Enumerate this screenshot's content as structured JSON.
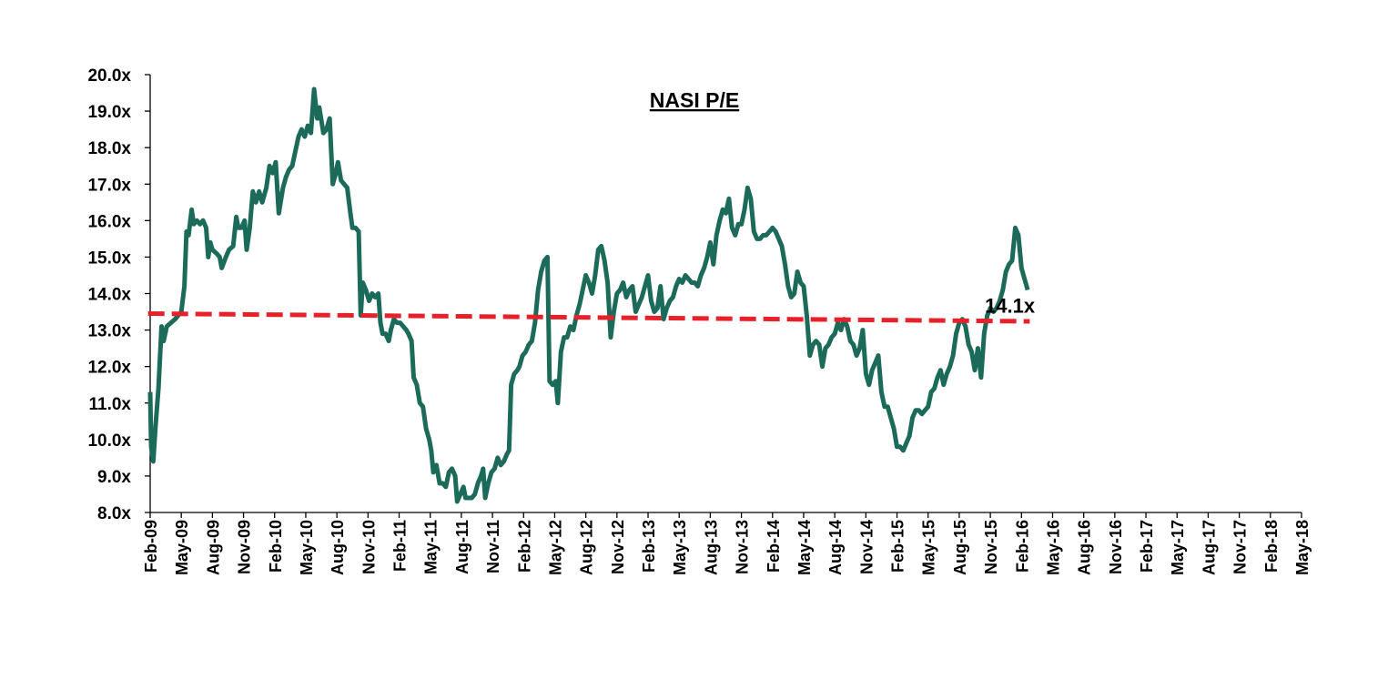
{
  "chart_data": {
    "type": "line",
    "title": "NASI P/E",
    "xlabel": "",
    "ylabel": "",
    "ylim": [
      8.0,
      20.0
    ],
    "ytick_step": 1.0,
    "ytick_labels": [
      "8.0x",
      "9.0x",
      "10.0x",
      "11.0x",
      "12.0x",
      "13.0x",
      "14.0x",
      "15.0x",
      "16.0x",
      "17.0x",
      "18.0x",
      "19.0x",
      "20.0x"
    ],
    "xtick_labels": [
      "Feb-09",
      "May-09",
      "Aug-09",
      "Nov-09",
      "Feb-10",
      "May-10",
      "Aug-10",
      "Nov-10",
      "Feb-11",
      "May-11",
      "Aug-11",
      "Nov-11",
      "Feb-12",
      "May-12",
      "Aug-12",
      "Nov-12",
      "Feb-13",
      "May-13",
      "Aug-13",
      "Nov-13",
      "Feb-14",
      "May-14",
      "Aug-14",
      "Nov-14",
      "Feb-15",
      "May-15",
      "Aug-15",
      "Nov-15",
      "Feb-16",
      "May-16",
      "Aug-16",
      "Nov-16",
      "Feb-17",
      "May-17",
      "Aug-17",
      "Nov-17",
      "Feb-18",
      "May-18"
    ],
    "grid": false,
    "colors": {
      "series": "#1c6b5a",
      "average": "#e8202a"
    },
    "series": [
      {
        "name": "",
        "points": [
          [
            0.0,
            11.3
          ],
          [
            0.1,
            9.8
          ],
          [
            0.3,
            9.4
          ],
          [
            0.5,
            10.3
          ],
          [
            0.8,
            11.4
          ],
          [
            1.1,
            13.1
          ],
          [
            1.3,
            12.7
          ],
          [
            1.6,
            13.1
          ],
          [
            2.0,
            13.2
          ],
          [
            2.4,
            13.3
          ],
          [
            2.7,
            13.4
          ],
          [
            3.0,
            13.5
          ],
          [
            3.3,
            14.2
          ],
          [
            3.5,
            15.7
          ],
          [
            3.7,
            15.6
          ],
          [
            4.0,
            16.3
          ],
          [
            4.2,
            15.9
          ],
          [
            4.5,
            16.0
          ],
          [
            4.8,
            15.9
          ],
          [
            5.1,
            16.0
          ],
          [
            5.4,
            15.8
          ],
          [
            5.6,
            15.0
          ],
          [
            5.8,
            15.4
          ],
          [
            6.0,
            15.2
          ],
          [
            6.4,
            15.1
          ],
          [
            6.7,
            15.0
          ],
          [
            6.9,
            14.7
          ],
          [
            7.3,
            15.0
          ],
          [
            7.6,
            15.2
          ],
          [
            8.0,
            15.3
          ],
          [
            8.3,
            16.1
          ],
          [
            8.5,
            15.8
          ],
          [
            8.8,
            15.8
          ],
          [
            9.1,
            16.0
          ],
          [
            9.3,
            15.2
          ],
          [
            9.6,
            15.8
          ],
          [
            9.9,
            16.8
          ],
          [
            10.2,
            16.5
          ],
          [
            10.5,
            16.8
          ],
          [
            10.8,
            16.5
          ],
          [
            11.2,
            16.9
          ],
          [
            11.5,
            17.5
          ],
          [
            11.8,
            17.3
          ],
          [
            12.1,
            17.6
          ],
          [
            12.4,
            16.2
          ],
          [
            12.8,
            16.9
          ],
          [
            13.1,
            17.2
          ],
          [
            13.4,
            17.4
          ],
          [
            13.7,
            17.5
          ],
          [
            14.0,
            17.9
          ],
          [
            14.3,
            18.3
          ],
          [
            14.6,
            18.5
          ],
          [
            14.9,
            18.3
          ],
          [
            15.2,
            18.6
          ],
          [
            15.5,
            18.4
          ],
          [
            15.8,
            19.6
          ],
          [
            16.1,
            18.8
          ],
          [
            16.3,
            19.1
          ],
          [
            16.7,
            18.4
          ],
          [
            17.0,
            18.5
          ],
          [
            17.3,
            18.8
          ],
          [
            17.6,
            17.0
          ],
          [
            17.9,
            17.3
          ],
          [
            18.1,
            17.6
          ],
          [
            18.4,
            17.1
          ],
          [
            18.7,
            17.0
          ],
          [
            19.0,
            16.9
          ],
          [
            19.3,
            16.2
          ],
          [
            19.5,
            15.8
          ],
          [
            19.8,
            15.8
          ],
          [
            20.1,
            15.7
          ],
          [
            20.3,
            13.4
          ],
          [
            20.5,
            14.3
          ],
          [
            20.8,
            14.1
          ],
          [
            21.1,
            13.8
          ],
          [
            21.4,
            14.0
          ],
          [
            21.7,
            13.9
          ],
          [
            22.0,
            14.0
          ],
          [
            22.2,
            13.2
          ],
          [
            22.4,
            12.9
          ],
          [
            22.7,
            12.9
          ],
          [
            23.0,
            12.7
          ],
          [
            23.2,
            13.0
          ],
          [
            23.5,
            13.3
          ],
          [
            23.8,
            13.2
          ],
          [
            24.1,
            13.2
          ],
          [
            24.4,
            13.1
          ],
          [
            24.7,
            13.0
          ],
          [
            24.9,
            12.9
          ],
          [
            25.2,
            12.7
          ],
          [
            25.4,
            11.7
          ],
          [
            25.7,
            11.5
          ],
          [
            26.0,
            11.0
          ],
          [
            26.3,
            10.9
          ],
          [
            26.6,
            10.3
          ],
          [
            26.9,
            10.0
          ],
          [
            27.1,
            9.7
          ],
          [
            27.3,
            9.1
          ],
          [
            27.6,
            9.3
          ],
          [
            27.9,
            8.8
          ],
          [
            28.2,
            8.8
          ],
          [
            28.5,
            8.7
          ],
          [
            28.8,
            9.1
          ],
          [
            29.1,
            9.2
          ],
          [
            29.4,
            9.0
          ],
          [
            29.6,
            8.3
          ],
          [
            29.9,
            8.5
          ],
          [
            30.2,
            8.7
          ],
          [
            30.4,
            8.4
          ],
          [
            30.7,
            8.4
          ],
          [
            31.0,
            8.4
          ],
          [
            31.3,
            8.5
          ],
          [
            31.6,
            8.8
          ],
          [
            31.9,
            9.0
          ],
          [
            32.1,
            9.2
          ],
          [
            32.3,
            8.4
          ],
          [
            32.6,
            8.8
          ],
          [
            32.9,
            9.1
          ],
          [
            33.2,
            9.2
          ],
          [
            33.5,
            9.5
          ],
          [
            33.8,
            9.3
          ],
          [
            34.1,
            9.4
          ],
          [
            34.4,
            9.6
          ],
          [
            34.6,
            9.7
          ],
          [
            34.8,
            11.5
          ],
          [
            35.1,
            11.8
          ],
          [
            35.4,
            11.9
          ],
          [
            35.6,
            12.0
          ],
          [
            35.9,
            12.3
          ],
          [
            36.2,
            12.4
          ],
          [
            36.5,
            12.6
          ],
          [
            36.8,
            12.7
          ],
          [
            37.1,
            13.2
          ],
          [
            37.4,
            14.1
          ],
          [
            37.7,
            14.6
          ],
          [
            38.0,
            14.9
          ],
          [
            38.3,
            15.0
          ],
          [
            38.5,
            11.6
          ],
          [
            38.8,
            11.5
          ],
          [
            39.1,
            11.6
          ],
          [
            39.3,
            11.0
          ],
          [
            39.6,
            12.4
          ],
          [
            39.9,
            12.8
          ],
          [
            40.2,
            12.8
          ],
          [
            40.5,
            13.1
          ],
          [
            40.8,
            13.0
          ],
          [
            41.1,
            13.4
          ],
          [
            41.4,
            13.7
          ],
          [
            41.7,
            14.1
          ],
          [
            42.0,
            14.5
          ],
          [
            42.3,
            14.3
          ],
          [
            42.6,
            14.0
          ],
          [
            42.9,
            14.5
          ],
          [
            43.2,
            15.2
          ],
          [
            43.5,
            15.3
          ],
          [
            43.8,
            14.9
          ],
          [
            44.1,
            14.3
          ],
          [
            44.4,
            12.8
          ],
          [
            44.7,
            13.5
          ],
          [
            45.0,
            14.0
          ],
          [
            45.3,
            14.1
          ],
          [
            45.6,
            14.3
          ],
          [
            45.9,
            13.9
          ],
          [
            46.2,
            14.1
          ],
          [
            46.5,
            14.2
          ],
          [
            46.8,
            13.5
          ],
          [
            47.1,
            13.7
          ],
          [
            47.4,
            13.9
          ],
          [
            47.7,
            14.2
          ],
          [
            48.0,
            14.5
          ],
          [
            48.3,
            13.8
          ],
          [
            48.6,
            13.5
          ],
          [
            48.9,
            13.6
          ],
          [
            49.2,
            14.2
          ],
          [
            49.5,
            13.3
          ],
          [
            49.8,
            13.6
          ],
          [
            50.1,
            13.8
          ],
          [
            50.4,
            13.9
          ],
          [
            50.7,
            14.2
          ],
          [
            51.0,
            14.4
          ],
          [
            51.3,
            14.3
          ],
          [
            51.6,
            14.5
          ],
          [
            51.9,
            14.4
          ],
          [
            52.2,
            14.3
          ],
          [
            52.5,
            14.3
          ],
          [
            52.8,
            14.2
          ],
          [
            53.1,
            14.5
          ],
          [
            53.4,
            14.7
          ],
          [
            53.7,
            15.0
          ],
          [
            54.0,
            15.4
          ],
          [
            54.3,
            14.8
          ],
          [
            54.6,
            15.6
          ],
          [
            54.9,
            16.0
          ],
          [
            55.2,
            16.3
          ],
          [
            55.5,
            16.2
          ],
          [
            55.8,
            16.6
          ],
          [
            56.1,
            15.8
          ],
          [
            56.4,
            15.6
          ],
          [
            56.7,
            15.9
          ],
          [
            57.0,
            15.9
          ],
          [
            57.3,
            16.3
          ],
          [
            57.6,
            16.9
          ],
          [
            57.9,
            16.6
          ],
          [
            58.2,
            15.7
          ],
          [
            58.5,
            15.5
          ],
          [
            58.8,
            15.5
          ],
          [
            59.1,
            15.6
          ],
          [
            59.4,
            15.6
          ],
          [
            59.7,
            15.7
          ],
          [
            60.0,
            15.8
          ],
          [
            60.3,
            15.7
          ],
          [
            60.6,
            15.5
          ],
          [
            60.9,
            15.3
          ],
          [
            61.2,
            14.8
          ],
          [
            61.5,
            14.2
          ],
          [
            61.8,
            13.9
          ],
          [
            62.1,
            14.0
          ],
          [
            62.4,
            14.6
          ],
          [
            62.7,
            14.3
          ],
          [
            63.0,
            14.2
          ],
          [
            63.3,
            13.4
          ],
          [
            63.6,
            12.3
          ],
          [
            63.9,
            12.6
          ],
          [
            64.2,
            12.7
          ],
          [
            64.5,
            12.6
          ],
          [
            64.8,
            12.0
          ],
          [
            65.1,
            12.5
          ],
          [
            65.4,
            12.6
          ],
          [
            65.7,
            12.8
          ],
          [
            66.0,
            12.9
          ],
          [
            66.3,
            13.2
          ],
          [
            66.6,
            13.0
          ],
          [
            66.9,
            13.3
          ],
          [
            67.2,
            13.1
          ],
          [
            67.5,
            12.7
          ],
          [
            67.8,
            12.6
          ],
          [
            68.1,
            12.3
          ],
          [
            68.4,
            12.5
          ],
          [
            68.7,
            13.0
          ],
          [
            69.0,
            11.8
          ],
          [
            69.3,
            11.5
          ],
          [
            69.6,
            11.9
          ],
          [
            69.9,
            12.1
          ],
          [
            70.2,
            12.3
          ],
          [
            70.5,
            11.3
          ],
          [
            70.8,
            10.9
          ],
          [
            71.1,
            10.9
          ],
          [
            71.4,
            10.6
          ],
          [
            71.7,
            10.3
          ],
          [
            72.0,
            9.8
          ],
          [
            72.3,
            9.8
          ],
          [
            72.6,
            9.7
          ],
          [
            72.9,
            9.9
          ],
          [
            73.2,
            10.1
          ],
          [
            73.5,
            10.6
          ],
          [
            73.8,
            10.8
          ],
          [
            74.1,
            10.8
          ],
          [
            74.4,
            10.7
          ],
          [
            74.7,
            10.8
          ],
          [
            75.0,
            10.9
          ],
          [
            75.3,
            11.3
          ],
          [
            75.6,
            11.4
          ],
          [
            75.9,
            11.7
          ],
          [
            76.2,
            11.9
          ],
          [
            76.5,
            11.5
          ],
          [
            76.8,
            11.8
          ],
          [
            77.1,
            12.0
          ],
          [
            77.4,
            12.3
          ],
          [
            77.7,
            12.9
          ],
          [
            78.0,
            13.2
          ],
          [
            78.3,
            13.3
          ],
          [
            78.6,
            13.1
          ],
          [
            78.9,
            12.6
          ],
          [
            79.2,
            12.4
          ],
          [
            79.5,
            11.9
          ],
          [
            79.8,
            12.5
          ],
          [
            80.1,
            11.7
          ],
          [
            80.4,
            12.9
          ],
          [
            80.7,
            13.4
          ],
          [
            81.0,
            13.6
          ],
          [
            81.3,
            13.5
          ],
          [
            81.6,
            13.6
          ],
          [
            81.9,
            13.8
          ],
          [
            82.2,
            14.1
          ],
          [
            82.5,
            14.6
          ],
          [
            82.8,
            14.8
          ],
          [
            83.1,
            14.9
          ],
          [
            83.4,
            15.8
          ],
          [
            83.7,
            15.6
          ],
          [
            84.0,
            14.7
          ],
          [
            84.3,
            14.4
          ],
          [
            84.6,
            14.1
          ]
        ]
      },
      {
        "name": "",
        "style": "dashed",
        "points": [
          [
            -0.2,
            13.45
          ],
          [
            84.8,
            13.24
          ]
        ]
      }
    ],
    "annotations": [
      {
        "text": "14.1x",
        "x": 84.6,
        "y": 14.1
      }
    ]
  }
}
